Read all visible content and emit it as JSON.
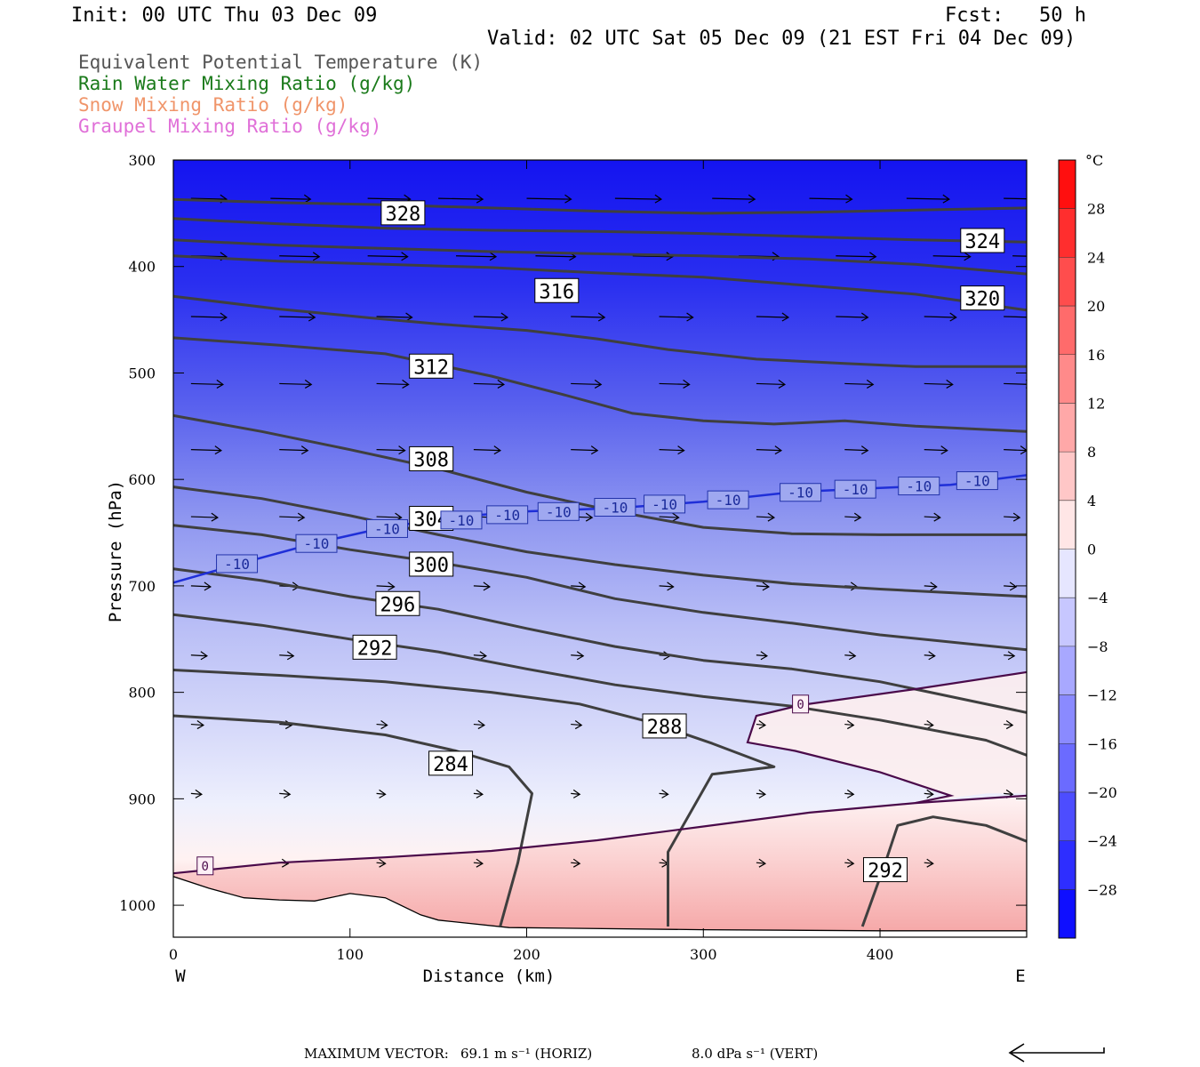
{
  "header": {
    "init": "Init: 00 UTC Thu 03 Dec 09",
    "fcst": "Fcst:   50 h",
    "valid": "Valid: 02 UTC Sat 05 Dec 09 (21 EST Fri 04 Dec 09)"
  },
  "legend": [
    {
      "text": "Equivalent Potential Temperature (K)",
      "color": "#555555"
    },
    {
      "text": "Rain Water Mixing Ratio (g/kg)",
      "color": "#1a7a1a"
    },
    {
      "text": "Snow Mixing Ratio (g/kg)",
      "color": "#f0956a"
    },
    {
      "text": "Graupel Mixing Ratio (g/kg)",
      "color": "#e070d8"
    }
  ],
  "footer": {
    "max_vector_prefix": "MAXIMUM VECTOR:",
    "horiz": "69.1 m s⁻¹ (HORIZ)",
    "vert": "8.0 dPa s⁻¹ (VERT)"
  },
  "chart_data": {
    "type": "cross-section",
    "xlabel": "Distance (km)",
    "ylabel": "Pressure (hPa)",
    "x_range": [
      0,
      483
    ],
    "y_range": [
      300,
      1030
    ],
    "x_ticks": [
      0,
      100,
      200,
      300,
      400
    ],
    "y_ticks": [
      300,
      400,
      500,
      600,
      700,
      800,
      900,
      1000
    ],
    "x_end_labels": {
      "left": "W",
      "right": "E"
    },
    "colorbar": {
      "unit": "°C",
      "range": [
        -32,
        32
      ],
      "ticks": [
        28,
        24,
        20,
        16,
        12,
        8,
        4,
        0,
        -4,
        -8,
        -12,
        -16,
        -20,
        -24,
        -28
      ]
    },
    "theta_e_contours": [
      {
        "value": 328,
        "points": [
          [
            0,
            337
          ],
          [
            60,
            340
          ],
          [
            120,
            342
          ],
          [
            180,
            345
          ],
          [
            240,
            348
          ],
          [
            300,
            350
          ],
          [
            360,
            349
          ],
          [
            420,
            347
          ],
          [
            483,
            345
          ]
        ],
        "label_at": [
          130,
          350
        ]
      },
      {
        "value": 324,
        "points": [
          [
            0,
            355
          ],
          [
            60,
            360
          ],
          [
            120,
            364
          ],
          [
            180,
            366
          ],
          [
            240,
            367
          ],
          [
            300,
            369
          ],
          [
            360,
            372
          ],
          [
            420,
            375
          ],
          [
            483,
            377
          ]
        ],
        "label_at": [
          458,
          376
        ]
      },
      {
        "value": "",
        "points": [
          [
            0,
            375
          ],
          [
            60,
            380
          ],
          [
            120,
            383
          ],
          [
            180,
            386
          ],
          [
            240,
            388
          ],
          [
            300,
            390
          ],
          [
            360,
            393
          ],
          [
            420,
            398
          ],
          [
            483,
            407
          ]
        ],
        "label_at": null
      },
      {
        "value": 320,
        "points": [
          [
            0,
            390
          ],
          [
            60,
            395
          ],
          [
            120,
            398
          ],
          [
            180,
            401
          ],
          [
            240,
            406
          ],
          [
            300,
            410
          ],
          [
            360,
            418
          ],
          [
            420,
            426
          ],
          [
            483,
            441
          ]
        ],
        "label_at": [
          458,
          430
        ]
      },
      {
        "value": 316,
        "points": [
          [
            0,
            428
          ],
          [
            60,
            440
          ],
          [
            110,
            448
          ],
          [
            150,
            454
          ],
          [
            200,
            460
          ],
          [
            240,
            468
          ],
          [
            280,
            478
          ],
          [
            330,
            487
          ],
          [
            380,
            491
          ],
          [
            420,
            494
          ],
          [
            483,
            494
          ]
        ],
        "label_at": [
          217,
          423
        ]
      },
      {
        "value": 312,
        "points": [
          [
            0,
            467
          ],
          [
            60,
            474
          ],
          [
            120,
            482
          ],
          [
            180,
            503
          ],
          [
            220,
            520
          ],
          [
            260,
            538
          ],
          [
            300,
            545
          ],
          [
            340,
            548
          ],
          [
            380,
            545
          ],
          [
            420,
            550
          ],
          [
            483,
            555
          ]
        ],
        "label_at": [
          146,
          494
        ]
      },
      {
        "value": 308,
        "points": [
          [
            0,
            540
          ],
          [
            50,
            555
          ],
          [
            100,
            572
          ],
          [
            150,
            590
          ],
          [
            200,
            612
          ],
          [
            250,
            630
          ],
          [
            300,
            645
          ],
          [
            350,
            651
          ],
          [
            400,
            652
          ],
          [
            483,
            652
          ]
        ],
        "label_at": [
          146,
          581
        ]
      },
      {
        "value": 304,
        "points": [
          [
            0,
            607
          ],
          [
            50,
            618
          ],
          [
            100,
            634
          ],
          [
            150,
            652
          ],
          [
            200,
            668
          ],
          [
            250,
            680
          ],
          [
            300,
            690
          ],
          [
            350,
            698
          ],
          [
            400,
            703
          ],
          [
            483,
            710
          ]
        ],
        "label_at": [
          146,
          637
        ]
      },
      {
        "value": 300,
        "points": [
          [
            0,
            643
          ],
          [
            50,
            652
          ],
          [
            100,
            666
          ],
          [
            150,
            678
          ],
          [
            200,
            692
          ],
          [
            250,
            712
          ],
          [
            300,
            725
          ],
          [
            350,
            735
          ],
          [
            400,
            746
          ],
          [
            483,
            760
          ]
        ],
        "label_at": [
          146,
          680
        ]
      },
      {
        "value": 296,
        "points": [
          [
            0,
            684
          ],
          [
            50,
            695
          ],
          [
            100,
            710
          ],
          [
            150,
            722
          ],
          [
            200,
            740
          ],
          [
            250,
            757
          ],
          [
            300,
            770
          ],
          [
            350,
            778
          ],
          [
            400,
            790
          ],
          [
            483,
            819
          ]
        ],
        "label_at": [
          127,
          717
        ]
      },
      {
        "value": 292,
        "points": [
          [
            0,
            727
          ],
          [
            50,
            737
          ],
          [
            100,
            750
          ],
          [
            150,
            762
          ],
          [
            200,
            778
          ],
          [
            250,
            793
          ],
          [
            300,
            804
          ],
          [
            350,
            813
          ],
          [
            400,
            826
          ],
          [
            460,
            845
          ],
          [
            483,
            859
          ]
        ],
        "label_at": [
          114,
          758
        ]
      },
      {
        "value": 288,
        "points": [
          [
            0,
            779
          ],
          [
            60,
            784
          ],
          [
            120,
            790
          ],
          [
            180,
            800
          ],
          [
            230,
            811
          ],
          [
            270,
            828
          ],
          [
            305,
            848
          ],
          [
            340,
            870
          ],
          [
            305,
            877
          ],
          [
            280,
            950
          ],
          [
            280,
            1020
          ]
        ],
        "label_at": [
          278,
          832
        ]
      },
      {
        "value": 284,
        "points": [
          [
            0,
            822
          ],
          [
            60,
            828
          ],
          [
            120,
            840
          ],
          [
            160,
            855
          ],
          [
            190,
            870
          ],
          [
            203,
            895
          ],
          [
            195,
            960
          ],
          [
            185,
            1020
          ]
        ],
        "label_at": [
          157,
          867
        ]
      },
      {
        "value": 292,
        "points": [
          [
            390,
            1020
          ],
          [
            403,
            960
          ],
          [
            410,
            925
          ],
          [
            430,
            917
          ],
          [
            460,
            925
          ],
          [
            483,
            940
          ]
        ],
        "label_at": [
          403,
          967
        ]
      }
    ],
    "isotherm_minus10": {
      "value": -10,
      "points": [
        [
          0,
          697
        ],
        [
          40,
          678
        ],
        [
          80,
          660
        ],
        [
          120,
          645
        ],
        [
          160,
          635
        ],
        [
          200,
          630
        ],
        [
          250,
          627
        ],
        [
          300,
          621
        ],
        [
          350,
          612
        ],
        [
          400,
          608
        ],
        [
          440,
          605
        ],
        [
          483,
          596
        ]
      ],
      "label_positions": [
        [
          36,
          680
        ],
        [
          81,
          661
        ],
        [
          121,
          647
        ],
        [
          163,
          639
        ],
        [
          189,
          634
        ],
        [
          218,
          631
        ],
        [
          250,
          627
        ],
        [
          278,
          624
        ],
        [
          314,
          620
        ],
        [
          355,
          613
        ],
        [
          386,
          610
        ],
        [
          422,
          607
        ],
        [
          455,
          602
        ]
      ]
    },
    "isotherm_zero_upper": {
      "value": 0,
      "points": [
        [
          483,
          781
        ],
        [
          420,
          797
        ],
        [
          355,
          812
        ],
        [
          330,
          822
        ],
        [
          325,
          847
        ],
        [
          352,
          855
        ],
        [
          400,
          875
        ],
        [
          440,
          897
        ],
        [
          420,
          904
        ]
      ],
      "label_at": [
        355,
        811
      ]
    },
    "isotherm_zero_lower": {
      "value": 0,
      "points": [
        [
          0,
          970
        ],
        [
          60,
          960
        ],
        [
          120,
          955
        ],
        [
          180,
          949
        ],
        [
          240,
          939
        ],
        [
          300,
          926
        ],
        [
          360,
          913
        ],
        [
          420,
          904
        ],
        [
          483,
          897
        ]
      ],
      "label_at": [
        18,
        963
      ]
    },
    "terrain": [
      [
        0,
        973
      ],
      [
        20,
        984
      ],
      [
        40,
        993
      ],
      [
        60,
        995
      ],
      [
        80,
        996
      ],
      [
        100,
        989
      ],
      [
        120,
        993
      ],
      [
        140,
        1009
      ],
      [
        150,
        1014
      ],
      [
        190,
        1021
      ],
      [
        300,
        1023
      ],
      [
        400,
        1024
      ],
      [
        483,
        1024
      ]
    ],
    "wind_vector_rows": [
      {
        "p": 336,
        "xs": [
          10,
          55,
          110,
          150,
          200,
          250,
          305,
          360,
          415,
          470
        ],
        "lens": [
          40,
          45,
          48,
          50,
          50,
          52,
          48,
          48,
          48,
          48
        ]
      },
      {
        "p": 390,
        "xs": [
          10,
          60,
          110,
          160,
          205,
          260,
          320,
          375,
          430,
          475
        ],
        "lens": [
          40,
          45,
          45,
          45,
          45,
          45,
          45,
          45,
          42,
          42
        ]
      },
      {
        "p": 447,
        "xs": [
          10,
          60,
          115,
          170,
          225,
          275,
          330,
          375,
          425,
          470
        ],
        "lens": [
          40,
          40,
          40,
          38,
          38,
          38,
          36,
          36,
          36,
          36
        ]
      },
      {
        "p": 510,
        "xs": [
          10,
          60,
          115,
          170,
          225,
          275,
          330,
          380,
          425,
          470
        ],
        "lens": [
          36,
          36,
          36,
          34,
          34,
          34,
          32,
          32,
          32,
          32
        ]
      },
      {
        "p": 572,
        "xs": [
          10,
          60,
          115,
          170,
          225,
          275,
          330,
          380,
          425,
          470
        ],
        "lens": [
          34,
          32,
          32,
          30,
          30,
          28,
          28,
          26,
          26,
          26
        ]
      },
      {
        "p": 635,
        "xs": [
          10,
          60,
          115,
          170,
          225,
          275,
          330,
          380,
          425,
          470
        ],
        "lens": [
          30,
          28,
          28,
          26,
          24,
          22,
          20,
          18,
          18,
          18
        ]
      },
      {
        "p": 700,
        "xs": [
          10,
          60,
          115,
          170,
          225,
          275,
          330,
          380,
          425,
          470
        ],
        "lens": [
          22,
          22,
          20,
          18,
          16,
          16,
          14,
          14,
          14,
          14
        ]
      },
      {
        "p": 765,
        "xs": [
          10,
          60,
          115,
          170,
          225,
          275,
          330,
          380,
          425,
          470
        ],
        "lens": [
          18,
          16,
          16,
          14,
          14,
          12,
          12,
          12,
          12,
          12
        ]
      },
      {
        "p": 830,
        "xs": [
          10,
          60,
          115,
          170,
          225,
          275,
          330,
          380,
          425,
          470
        ],
        "lens": [
          14,
          14,
          12,
          12,
          12,
          12,
          10,
          10,
          10,
          10
        ]
      },
      {
        "p": 895,
        "xs": [
          10,
          60,
          115,
          170,
          225,
          275,
          330,
          380,
          425,
          470
        ],
        "lens": [
          12,
          12,
          10,
          10,
          10,
          10,
          10,
          10,
          10,
          10
        ]
      },
      {
        "p": 960,
        "xs": [
          60,
          115,
          170,
          225,
          275,
          330,
          380,
          425
        ],
        "lens": [
          10,
          10,
          10,
          10,
          10,
          10,
          10,
          10
        ]
      }
    ]
  }
}
